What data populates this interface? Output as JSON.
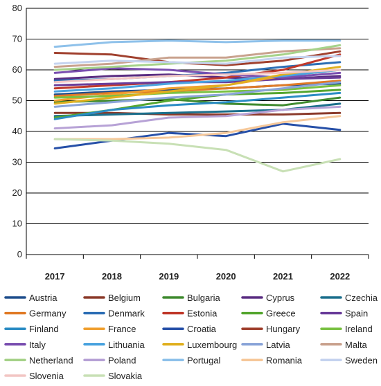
{
  "chart_data": {
    "type": "line",
    "title": "",
    "xlabel": "",
    "ylabel": "",
    "ylim": [
      0,
      80
    ],
    "yticks": [
      0,
      10,
      20,
      30,
      40,
      50,
      60,
      70,
      80
    ],
    "x": [
      "2017",
      "2018",
      "2019",
      "2020",
      "2021",
      "2022"
    ],
    "grid": "horizontal",
    "legend_position": "bottom",
    "series": [
      {
        "name": "Austria",
        "color": "#1f4e8c",
        "values": [
          52.0,
          53.0,
          53.5,
          54.0,
          55.0,
          55.5
        ]
      },
      {
        "name": "Belgium",
        "color": "#8b3a2a",
        "values": [
          46.0,
          46.0,
          45.5,
          45.5,
          45.5,
          46.0
        ]
      },
      {
        "name": "Bulgaria",
        "color": "#3f8a2f",
        "values": [
          49.5,
          50.0,
          50.5,
          49.0,
          48.5,
          51.0
        ]
      },
      {
        "name": "Cyprus",
        "color": "#5a2d82",
        "values": [
          57.0,
          58.0,
          58.5,
          57.5,
          57.0,
          58.0
        ]
      },
      {
        "name": "Czechia",
        "color": "#1b6f8c",
        "values": [
          45.0,
          45.5,
          46.0,
          46.5,
          47.0,
          49.0
        ]
      },
      {
        "name": "Germany",
        "color": "#e07b27",
        "values": [
          51.5,
          52.5,
          53.0,
          54.0,
          55.0,
          56.5
        ]
      },
      {
        "name": "Denmark",
        "color": "#2e6fb5",
        "values": [
          56.5,
          57.0,
          58.0,
          59.0,
          61.0,
          62.5
        ]
      },
      {
        "name": "Estonia",
        "color": "#c0392b",
        "values": [
          54.0,
          55.0,
          56.0,
          57.5,
          60.0,
          65.0
        ]
      },
      {
        "name": "Greece",
        "color": "#55a630",
        "values": [
          44.5,
          47.0,
          50.0,
          52.0,
          52.5,
          53.5
        ]
      },
      {
        "name": "Spain",
        "color": "#6a3d9a",
        "values": [
          55.0,
          55.5,
          56.0,
          56.0,
          57.0,
          57.5
        ]
      },
      {
        "name": "Finland",
        "color": "#2b8cc4",
        "values": [
          44.0,
          47.0,
          48.5,
          49.5,
          51.0,
          52.5
        ]
      },
      {
        "name": "France",
        "color": "#f0a030",
        "values": [
          50.0,
          52.0,
          54.0,
          55.0,
          58.0,
          60.0
        ]
      },
      {
        "name": "Croatia",
        "color": "#2750a8",
        "values": [
          34.5,
          37.0,
          39.5,
          38.5,
          42.5,
          40.5
        ]
      },
      {
        "name": "Hungary",
        "color": "#a0402e",
        "values": [
          65.5,
          65.0,
          62.5,
          61.5,
          63.0,
          66.0
        ]
      },
      {
        "name": "Ireland",
        "color": "#7ac143",
        "values": [
          51.0,
          51.5,
          52.5,
          53.0,
          53.5,
          55.0
        ]
      },
      {
        "name": "Italy",
        "color": "#7a4fb0",
        "values": [
          59.0,
          60.5,
          60.0,
          58.5,
          57.5,
          59.0
        ]
      },
      {
        "name": "Lithuania",
        "color": "#4aa3df",
        "values": [
          53.0,
          54.0,
          55.5,
          56.5,
          58.0,
          60.0
        ]
      },
      {
        "name": "Luxembourg",
        "color": "#e0b020",
        "values": [
          49.0,
          51.0,
          53.0,
          55.0,
          58.5,
          61.0
        ]
      },
      {
        "name": "Latvia",
        "color": "#8aa4d8",
        "values": [
          48.0,
          49.5,
          51.0,
          52.0,
          54.0,
          56.0
        ]
      },
      {
        "name": "Malta",
        "color": "#c9a28e",
        "values": [
          61.0,
          62.0,
          64.0,
          64.0,
          66.0,
          67.0
        ]
      },
      {
        "name": "Netherland",
        "color": "#a6d28a",
        "values": [
          60.0,
          61.0,
          62.0,
          63.0,
          65.0,
          68.0
        ]
      },
      {
        "name": "Poland",
        "color": "#b7a2d6",
        "values": [
          41.0,
          42.0,
          44.5,
          45.0,
          47.0,
          48.0
        ]
      },
      {
        "name": "Portugal",
        "color": "#8ec1ea",
        "values": [
          67.5,
          69.0,
          69.5,
          69.0,
          69.5,
          69.5
        ]
      },
      {
        "name": "Romania",
        "color": "#f6c89a",
        "values": [
          37.5,
          37.5,
          38.0,
          39.5,
          43.0,
          45.0
        ]
      },
      {
        "name": "Sweden",
        "color": "#c5d3ef",
        "values": [
          62.0,
          63.0,
          62.5,
          62.0,
          64.0,
          64.5
        ]
      },
      {
        "name": "Slovenia",
        "color": "#f2c6c4",
        "values": [
          56.0,
          57.0,
          58.0,
          58.5,
          59.0,
          60.0
        ]
      },
      {
        "name": "Slovakia",
        "color": "#c8e0b5",
        "values": [
          37.5,
          37.0,
          36.0,
          34.0,
          27.0,
          31.0
        ]
      }
    ]
  }
}
